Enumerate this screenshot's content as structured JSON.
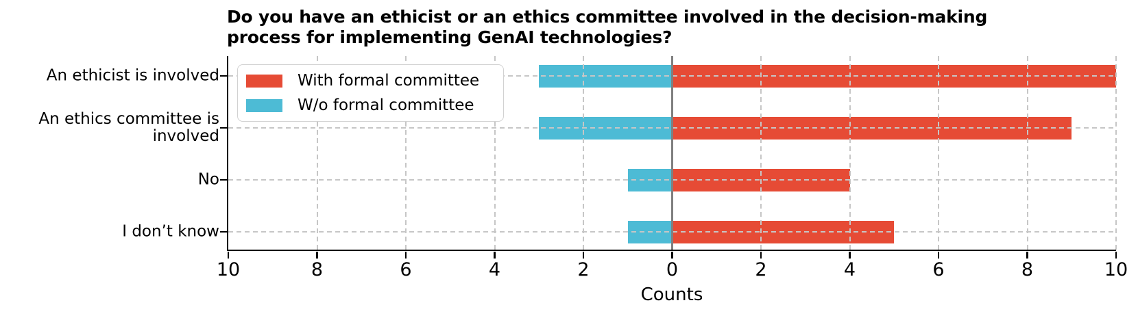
{
  "chart_data": {
    "type": "bar",
    "orientation": "horizontal-diverging",
    "title": "Do you have an ethicist or an ethics committee involved in the decision-making\nprocess for implementing GenAI technologies?",
    "categories": [
      "An ethicist is involved",
      "An ethics committee is\ninvolved",
      "No",
      "I don’t know"
    ],
    "series": [
      {
        "name": "With formal committee",
        "color": "#e64b35",
        "direction": "right",
        "values": [
          10,
          9,
          4,
          5
        ]
      },
      {
        "name": "W/o formal committee",
        "color": "#4dbbd5",
        "direction": "left",
        "values": [
          3,
          3,
          1,
          1
        ]
      }
    ],
    "xlabel": "Counts",
    "xlim": [
      -10,
      10
    ],
    "xticks": [
      -10,
      -8,
      -6,
      -4,
      -2,
      0,
      2,
      4,
      6,
      8,
      10
    ],
    "xtick_labels": [
      "10",
      "8",
      "6",
      "4",
      "2",
      "0",
      "2",
      "4",
      "6",
      "8",
      "10"
    ],
    "grid": true,
    "grid_color": "#c6c6c6",
    "zero_line_color": "#808080",
    "legend_position": "upper-left"
  }
}
